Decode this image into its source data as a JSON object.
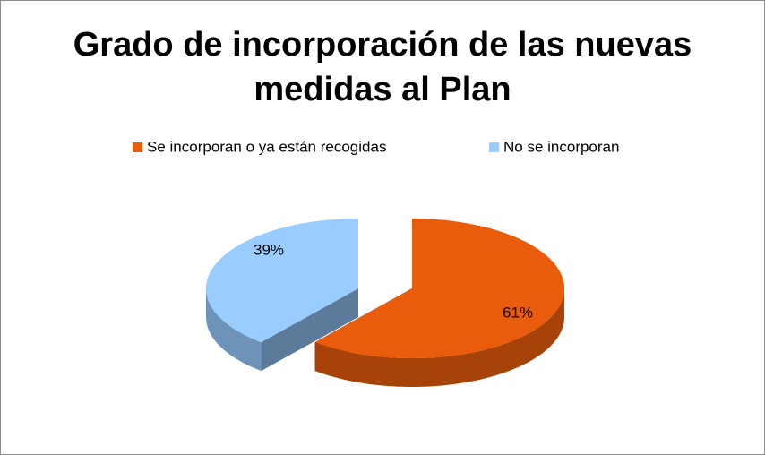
{
  "chart_data": {
    "type": "pie",
    "title": "Grado de incorporación de las nuevas medidas al Plan",
    "categories": [
      "Se incorporan o ya están recogidas",
      "No se incorporan"
    ],
    "values": [
      61,
      39
    ],
    "value_labels": [
      "61%",
      "39%"
    ],
    "colors": [
      "#e85c0c",
      "#99ccff"
    ],
    "legend": "top"
  }
}
